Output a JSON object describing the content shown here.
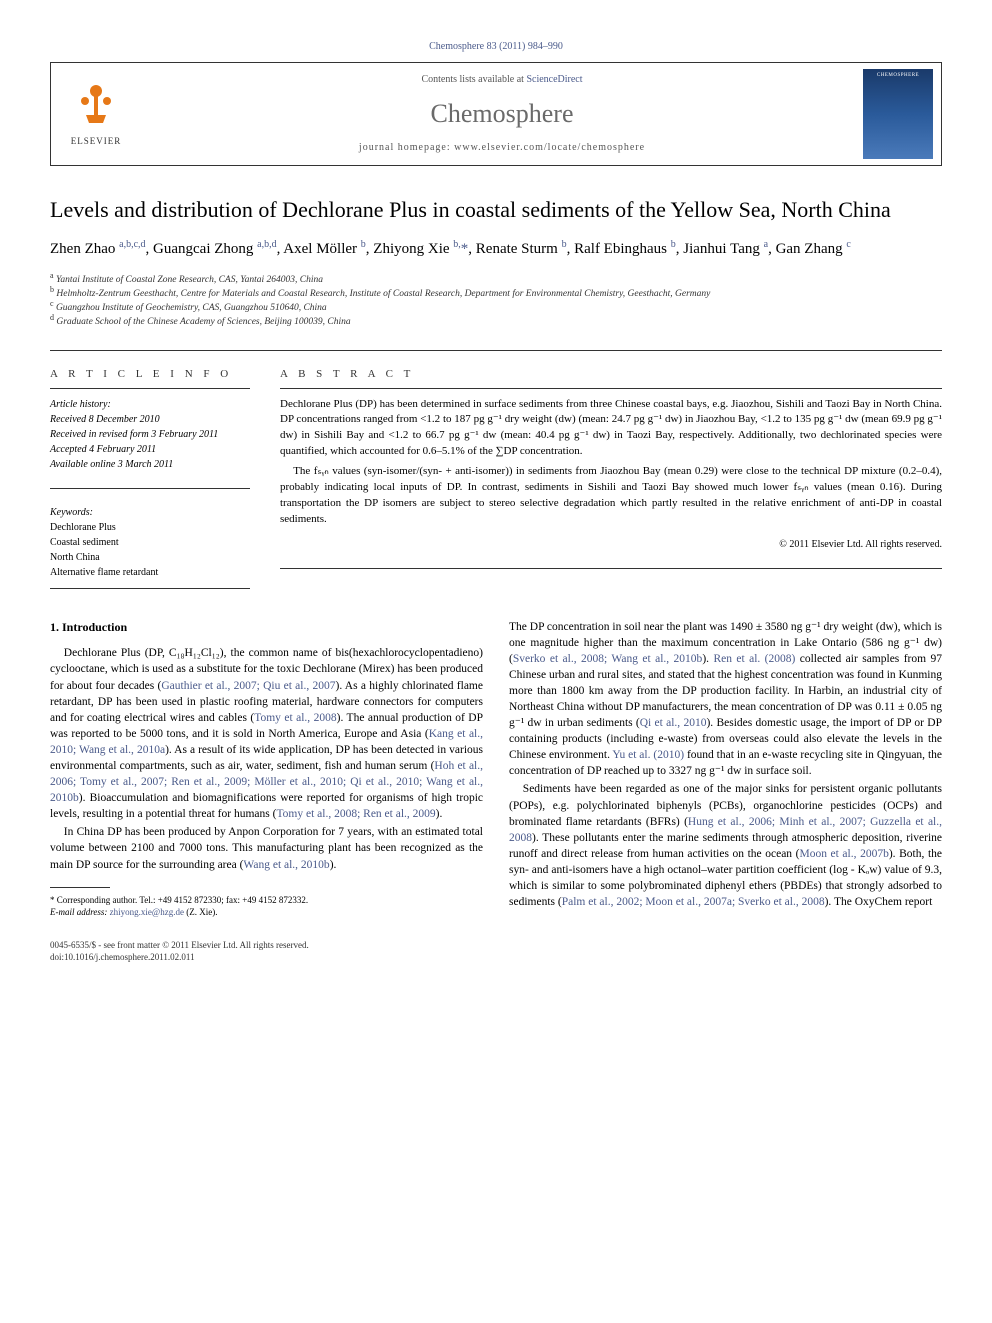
{
  "header": {
    "citation": "Chemosphere 83 (2011) 984–990",
    "contents_text": "Contents lists available at ",
    "contents_link": "ScienceDirect",
    "journal_name": "Chemosphere",
    "homepage_text": "journal homepage: www.elsevier.com/locate/chemosphere",
    "publisher": "ELSEVIER"
  },
  "article": {
    "title": "Levels and distribution of Dechlorane Plus in coastal sediments of the Yellow Sea, North China",
    "authors_html": "Zhen Zhao <sup>a,b,c,d</sup>, Guangcai Zhong <sup>a,b,d</sup>, Axel Möller <sup>b</sup>, Zhiyong Xie <sup>b,</sup><span class='star'>*</span>, Renate Sturm <sup>b</sup>, Ralf Ebinghaus <sup>b</sup>, Jianhui Tang <sup>a</sup>, Gan Zhang <sup>c</sup>",
    "affiliations": {
      "a": "Yantai Institute of Coastal Zone Research, CAS, Yantai 264003, China",
      "b": "Helmholtz-Zentrum Geesthacht, Centre for Materials and Coastal Research, Institute of Coastal Research, Department for Environmental Chemistry, Geesthacht, Germany",
      "c": "Guangzhou Institute of Geochemistry, CAS, Guangzhou 510640, China",
      "d": "Graduate School of the Chinese Academy of Sciences, Beijing 100039, China"
    }
  },
  "article_info": {
    "heading": "A R T I C L E   I N F O",
    "history_label": "Article history:",
    "received": "Received 8 December 2010",
    "revised": "Received in revised form 3 February 2011",
    "accepted": "Accepted 4 February 2011",
    "online": "Available online 3 March 2011",
    "keywords_label": "Keywords:",
    "keywords": [
      "Dechlorane Plus",
      "Coastal sediment",
      "North China",
      "Alternative flame retardant"
    ]
  },
  "abstract": {
    "heading": "A B S T R A C T",
    "p1": "Dechlorane Plus (DP) has been determined in surface sediments from three Chinese coastal bays, e.g. Jiaozhou, Sishili and Taozi Bay in North China. DP concentrations ranged from <1.2 to 187 pg g⁻¹ dry weight (dw) (mean: 24.7 pg g⁻¹ dw) in Jiaozhou Bay, <1.2 to 135 pg g⁻¹ dw (mean 69.9 pg g⁻¹ dw) in Sishili Bay and <1.2 to 66.7 pg g⁻¹ dw (mean: 40.4 pg g⁻¹ dw) in Taozi Bay, respectively. Additionally, two dechlorinated species were quantified, which accounted for 0.6–5.1% of the ∑DP concentration.",
    "p2": "The fₛᵧₙ values (syn-isomer/(syn- + anti-isomer)) in sediments from Jiaozhou Bay (mean 0.29) were close to the technical DP mixture (0.2–0.4), probably indicating local inputs of DP. In contrast, sediments in Sishili and Taozi Bay showed much lower fₛᵧₙ values (mean 0.16). During transportation the DP isomers are subject to stereo selective degradation which partly resulted in the relative enrichment of anti-DP in coastal sediments.",
    "copyright": "© 2011 Elsevier Ltd. All rights reserved."
  },
  "body": {
    "section1_heading": "1. Introduction",
    "col1_p1_a": "Dechlorane Plus (DP, C₁₈H₁₂Cl₁₂), the common name of bis(hexachlorocyclopentadieno) cyclooctane, which is used as a substitute for the toxic Dechlorane (Mirex) has been produced for about four decades (",
    "col1_p1_ref1": "Gauthier et al., 2007; Qiu et al., 2007",
    "col1_p1_b": "). As a highly chlorinated flame retardant, DP has been used in plastic roofing material, hardware connectors for computers and for coating electrical wires and cables (",
    "col1_p1_ref2": "Tomy et al., 2008",
    "col1_p1_c": "). The annual production of DP was reported to be 5000 tons, and it is sold in North America, Europe and Asia (",
    "col1_p1_ref3": "Kang et al., 2010; Wang et al., 2010a",
    "col1_p1_d": "). As a result of its wide application, DP has been detected in various environmental compartments, such as air, water, sediment, fish and human serum (",
    "col1_p1_ref4": "Hoh et al., 2006; Tomy et al., 2007; Ren et al., 2009; Möller et al., 2010; Qi et al., 2010; Wang et al., 2010b",
    "col1_p1_e": "). Bioaccumulation and biomagnifications were reported for organisms of high tropic levels, resulting in a potential threat for humans (",
    "col1_p1_ref5": "Tomy et al., 2008; Ren et al., 2009",
    "col1_p1_f": ").",
    "col1_p2_a": "In China DP has been produced by Anpon Corporation for 7 years, with an estimated total volume between 2100 and 7000 tons. This manufacturing plant has been recognized as the main DP source for the surrounding area (",
    "col1_p2_ref1": "Wang et al., 2010b",
    "col1_p2_b": ").",
    "col2_p1_a": "The DP concentration in soil near the plant was 1490 ± 3580 ng g⁻¹ dry weight (dw), which is one magnitude higher than the maximum concentration in Lake Ontario (586 ng g⁻¹ dw) (",
    "col2_p1_ref1": "Sverko et al., 2008; Wang et al., 2010b",
    "col2_p1_b": "). ",
    "col2_p1_ref2": "Ren et al. (2008)",
    "col2_p1_c": " collected air samples from 97 Chinese urban and rural sites, and stated that the highest concentration was found in Kunming more than 1800 km away from the DP production facility. In Harbin, an industrial city of Northeast China without DP manufacturers, the mean concentration of DP was 0.11 ± 0.05 ng g⁻¹ dw in urban sediments (",
    "col2_p1_ref3": "Qi et al., 2010",
    "col2_p1_d": "). Besides domestic usage, the import of DP or DP containing products (including e-waste) from overseas could also elevate the levels in the Chinese environment. ",
    "col2_p1_ref4": "Yu et al. (2010)",
    "col2_p1_e": " found that in an e-waste recycling site in Qingyuan, the concentration of DP reached up to 3327 ng g⁻¹ dw in surface soil.",
    "col2_p2_a": "Sediments have been regarded as one of the major sinks for persistent organic pollutants (POPs), e.g. polychlorinated biphenyls (PCBs), organochlorine pesticides (OCPs) and brominated flame retardants (BFRs) (",
    "col2_p2_ref1": "Hung et al., 2006; Minh et al., 2007; Guzzella et al., 2008",
    "col2_p2_b": "). These pollutants enter the marine sediments through atmospheric deposition, riverine runoff and direct release from human activities on the ocean (",
    "col2_p2_ref2": "Moon et al., 2007b",
    "col2_p2_c": "). Both, the syn- and anti-isomers have a high octanol–water partition coefficient (log - Kₒw) value of 9.3, which is similar to some polybrominated diphenyl ethers (PBDEs) that strongly adsorbed to sediments (",
    "col2_p2_ref3": "Palm et al., 2002; Moon et al., 2007a; Sverko et al., 2008",
    "col2_p2_d": "). The OxyChem report"
  },
  "footnote": {
    "corresponding": "* Corresponding author. Tel.: +49 4152 872330; fax: +49 4152 872332.",
    "email_label": "E-mail address:",
    "email": "zhiyong.xie@hzg.de",
    "email_name": "(Z. Xie)."
  },
  "footer": {
    "left1": "0045-6535/$ - see front matter © 2011 Elsevier Ltd. All rights reserved.",
    "left2": "doi:10.1016/j.chemosphere.2011.02.011"
  },
  "colors": {
    "link": "#4a5a8a",
    "publisher_orange": "#e67817",
    "journal_gray": "#6a6a6a"
  }
}
